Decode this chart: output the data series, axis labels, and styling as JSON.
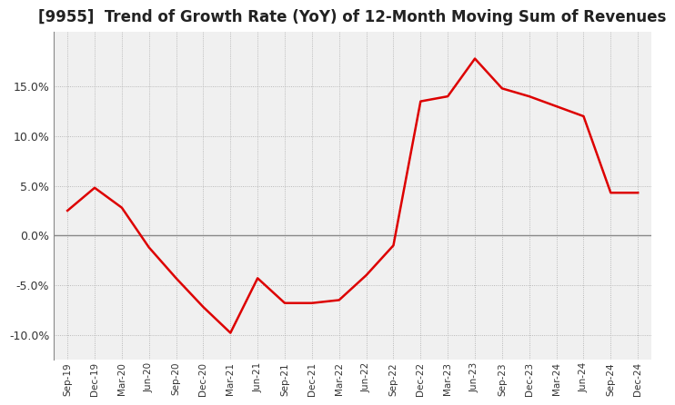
{
  "title": "[9955]  Trend of Growth Rate (YoY) of 12-Month Moving Sum of Revenues",
  "title_fontsize": 12,
  "background_color": "#ffffff",
  "plot_background_color": "#f0f0f0",
  "grid_color": "#aaaaaa",
  "line_color": "#dd0000",
  "ylim": [
    -0.125,
    0.205
  ],
  "yticks": [
    -0.1,
    -0.05,
    0.0,
    0.05,
    0.1,
    0.15
  ],
  "dates": [
    "Sep-19",
    "Dec-19",
    "Mar-20",
    "Jun-20",
    "Sep-20",
    "Dec-20",
    "Mar-21",
    "Jun-21",
    "Sep-21",
    "Dec-21",
    "Mar-22",
    "Jun-22",
    "Sep-22",
    "Dec-22",
    "Mar-23",
    "Jun-23",
    "Sep-23",
    "Dec-23",
    "Mar-24",
    "Jun-24",
    "Sep-24",
    "Dec-24"
  ],
  "values": [
    0.025,
    0.048,
    0.028,
    -0.012,
    -0.043,
    -0.072,
    -0.098,
    -0.043,
    -0.068,
    -0.068,
    -0.065,
    -0.04,
    -0.01,
    0.135,
    0.14,
    0.178,
    0.148,
    0.14,
    0.13,
    0.12,
    0.043,
    0.043
  ]
}
